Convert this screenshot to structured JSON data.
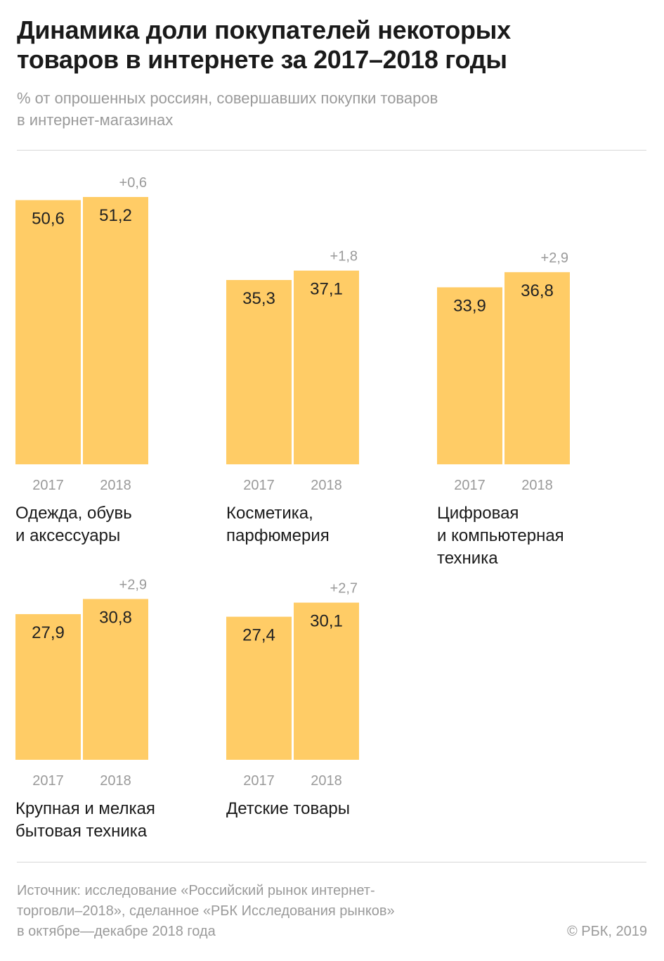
{
  "header": {
    "title_lines": [
      "Динамика доли покупателей некоторых",
      "товаров в интернете за 2017–2018 годы"
    ],
    "subtitle_lines": [
      "% от опрошенных россиян, совершавших покупки товаров",
      "в интернет-магазинах"
    ]
  },
  "chart_data": {
    "type": "bar",
    "title": "Динамика доли покупателей некоторых товаров в интернете за 2017–2018 годы",
    "subtitle": "% от опрошенных россиян, совершавших покупки товаров в интернет-магазинах",
    "categories": [
      "2017",
      "2018"
    ],
    "ylim": [
      0,
      51.2
    ],
    "colors": {
      "bar": "#ffcc66"
    },
    "groups": [
      {
        "name_lines": [
          "Одежда, обувь",
          "и аксессуары"
        ],
        "values": [
          50.6,
          51.2
        ],
        "labels": [
          "50,6",
          "51,2"
        ],
        "delta": "+0,6"
      },
      {
        "name_lines": [
          "Косметика,",
          "парфюмерия"
        ],
        "values": [
          35.3,
          37.1
        ],
        "labels": [
          "35,3",
          "37,1"
        ],
        "delta": "+1,8"
      },
      {
        "name_lines": [
          "Цифровая",
          "и компьютерная",
          "техника"
        ],
        "values": [
          33.9,
          36.8
        ],
        "labels": [
          "33,9",
          "36,8"
        ],
        "delta": "+2,9"
      },
      {
        "name_lines": [
          "Крупная и мелкая",
          "бытовая техника"
        ],
        "values": [
          27.9,
          30.8
        ],
        "labels": [
          "27,9",
          "30,8"
        ],
        "delta": "+2,9"
      },
      {
        "name_lines": [
          "Детские товары"
        ],
        "values": [
          27.4,
          30.1
        ],
        "labels": [
          "27,4",
          "30,1"
        ],
        "delta": "+2,7"
      }
    ]
  },
  "footer": {
    "source_lines": [
      "Источник: исследование «Российский рынок интернет-",
      "торговли–2018», сделанное «РБК Исследования рынков»",
      "в октябре—декабре 2018 года"
    ],
    "copyright": "© РБК, 2019"
  }
}
